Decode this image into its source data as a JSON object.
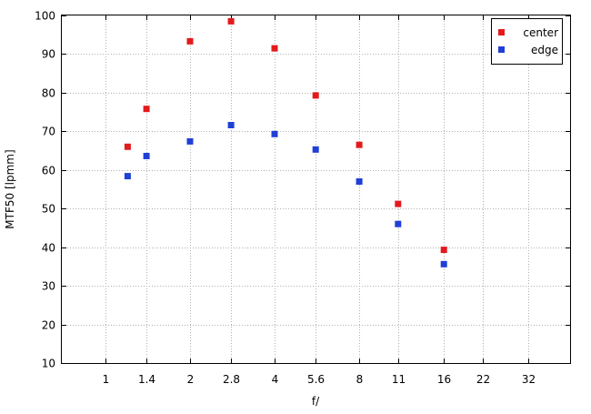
{
  "chart_data": {
    "type": "scatter",
    "title": "",
    "xlabel": "f/",
    "ylabel": "MTF50 [lpmm]",
    "x_scale": "log2",
    "x_ticks": [
      "1",
      "1.4",
      "2",
      "2.8",
      "4",
      "5.6",
      "8",
      "11",
      "16",
      "22",
      "32"
    ],
    "xlim": [
      0.7,
      45
    ],
    "ylim": [
      10,
      100
    ],
    "y_ticks": [
      10,
      20,
      30,
      40,
      50,
      60,
      70,
      80,
      90,
      100
    ],
    "grid": true,
    "legend_position": "top-right",
    "series": [
      {
        "name": "center",
        "color": "#e31a1c",
        "x": [
          1.2,
          1.4,
          2,
          2.8,
          4,
          5.6,
          8,
          11,
          16
        ],
        "y": [
          66,
          75.8,
          93.3,
          98.5,
          91.5,
          79.3,
          66.5,
          51.2,
          39.3
        ]
      },
      {
        "name": "edge",
        "color": "#1f3fd6",
        "x": [
          1.2,
          1.4,
          2,
          2.8,
          4,
          5.6,
          8,
          11,
          16
        ],
        "y": [
          58.4,
          63.6,
          67.4,
          71.6,
          69.3,
          65.3,
          57,
          46,
          35.6
        ]
      }
    ]
  }
}
